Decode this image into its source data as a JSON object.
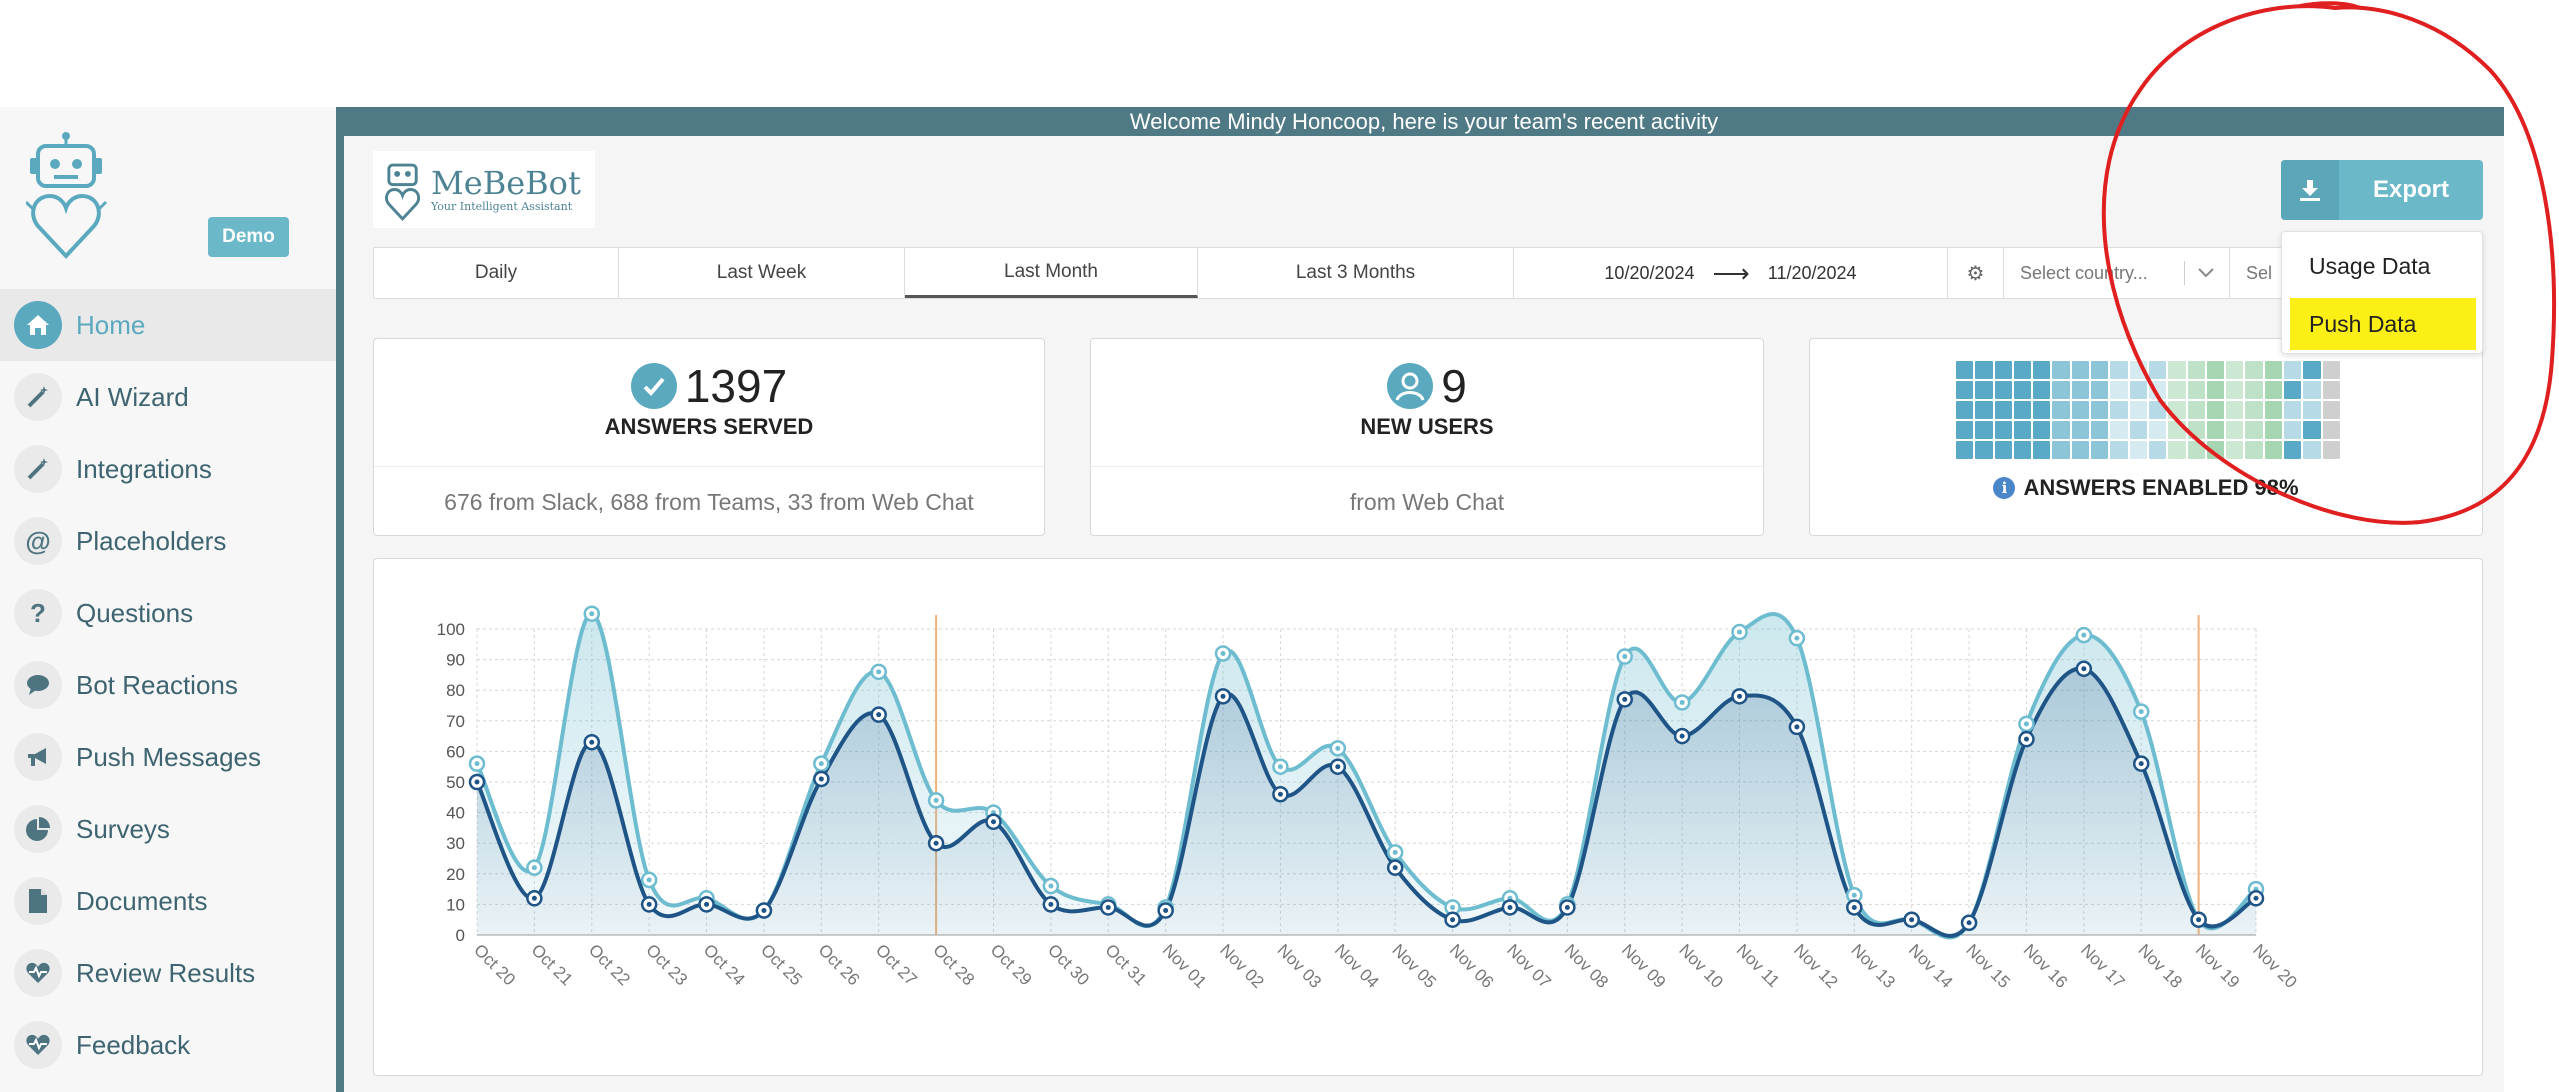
{
  "welcome": "Welcome Mindy Honcoop, here is your team's recent activity",
  "brand": {
    "name": "MeBeBot",
    "tagline": "Your Intelligent Assistant"
  },
  "sidebar": {
    "demo_badge": "Demo",
    "items": [
      {
        "label": "Home",
        "icon": "home-icon",
        "active": true
      },
      {
        "label": "AI Wizard",
        "icon": "magic-wand-icon"
      },
      {
        "label": "Integrations",
        "icon": "magic-wand-icon"
      },
      {
        "label": "Placeholders",
        "icon": "at-icon"
      },
      {
        "label": "Questions",
        "icon": "question-icon"
      },
      {
        "label": "Bot Reactions",
        "icon": "chat-bubble-icon"
      },
      {
        "label": "Push Messages",
        "icon": "megaphone-icon"
      },
      {
        "label": "Surveys",
        "icon": "pie-chart-icon"
      },
      {
        "label": "Documents",
        "icon": "document-icon"
      },
      {
        "label": "Review Results",
        "icon": "heart-pulse-icon"
      },
      {
        "label": "Feedback",
        "icon": "heart-pulse-icon"
      }
    ]
  },
  "export": {
    "label": "Export",
    "menu": [
      {
        "label": "Usage Data"
      },
      {
        "label": "Push Data",
        "highlighted": true
      }
    ]
  },
  "filters": {
    "tabs": [
      {
        "label": "Daily"
      },
      {
        "label": "Last Week"
      },
      {
        "label": "Last Month",
        "active": true
      },
      {
        "label": "Last 3 Months"
      }
    ],
    "date_from": "10/20/2024",
    "date_to": "11/20/2024",
    "country_placeholder": "Select country...",
    "other_select": "Sel"
  },
  "cards": {
    "answers": {
      "value": "1397",
      "label": "ANSWERS SERVED",
      "detail": "676 from Slack, 688 from Teams, 33 from Web Chat"
    },
    "users": {
      "value": "9",
      "label": "NEW USERS",
      "detail": "from Web Chat"
    },
    "enabled": {
      "label": "ANSWERS ENABLED 98%",
      "info_icon": "i"
    }
  },
  "colors": {
    "accent": "#6bb8c9",
    "sidebar_dark": "#4f7a85",
    "series_light": "#6dbccf",
    "series_dark": "#1f5487",
    "marker_line": "#f0b27a",
    "highlight": "#fcef16",
    "annotation": "#e02020"
  },
  "chart_data": {
    "type": "area",
    "x": [
      "Oct 20",
      "Oct 21",
      "Oct 22",
      "Oct 23",
      "Oct 24",
      "Oct 25",
      "Oct 26",
      "Oct 27",
      "Oct 28",
      "Oct 29",
      "Oct 30",
      "Oct 31",
      "Nov 01",
      "Nov 02",
      "Nov 03",
      "Nov 04",
      "Nov 05",
      "Nov 06",
      "Nov 07",
      "Nov 08",
      "Nov 09",
      "Nov 10",
      "Nov 11",
      "Nov 12",
      "Nov 13",
      "Nov 14",
      "Nov 15",
      "Nov 16",
      "Nov 17",
      "Nov 18",
      "Nov 19",
      "Nov 20"
    ],
    "series": [
      {
        "values": [
          56,
          22,
          105,
          18,
          12,
          8,
          56,
          86,
          44,
          40,
          16,
          10,
          9,
          92,
          55,
          61,
          27,
          9,
          12,
          10,
          91,
          76,
          99,
          97,
          13,
          5,
          4,
          69,
          98,
          73,
          5,
          15
        ]
      },
      {
        "values": [
          50,
          12,
          63,
          10,
          10,
          8,
          51,
          72,
          30,
          37,
          10,
          9,
          8,
          78,
          46,
          55,
          22,
          5,
          9,
          9,
          77,
          65,
          78,
          68,
          9,
          5,
          4,
          64,
          87,
          56,
          5,
          12
        ]
      }
    ],
    "markers": [
      "Oct 28",
      "Nov 19"
    ],
    "ylim": [
      0,
      100
    ],
    "yticks": [
      0,
      10,
      20,
      30,
      40,
      50,
      60,
      70,
      80,
      90,
      100
    ],
    "grid": true
  }
}
